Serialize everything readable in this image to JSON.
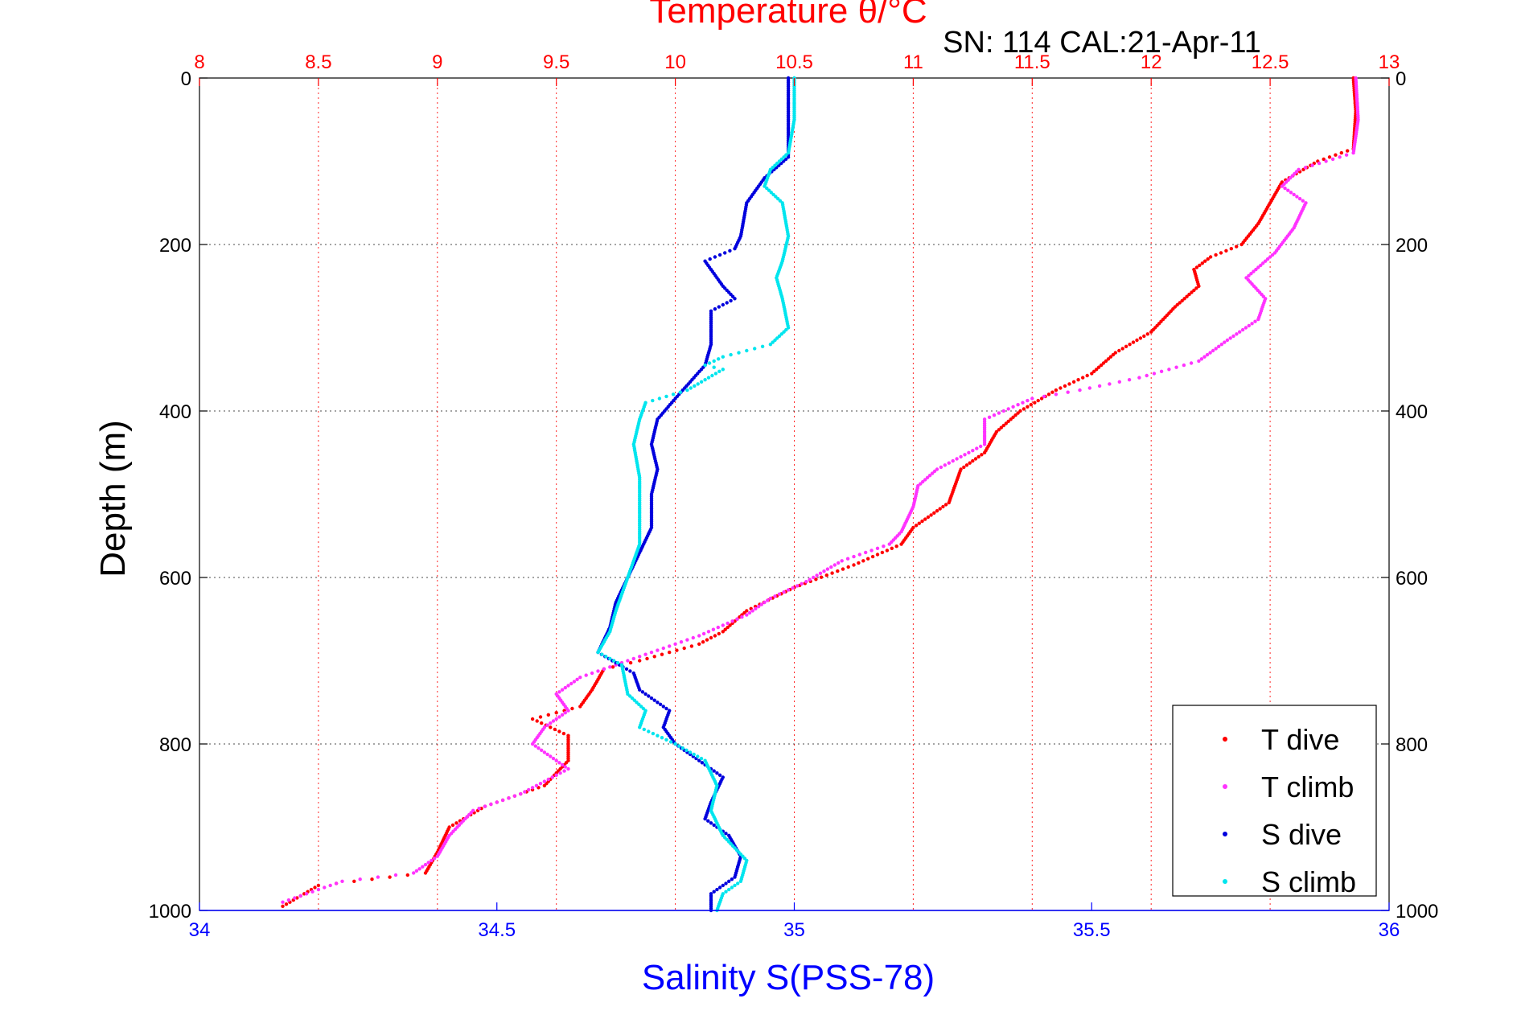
{
  "title_temperature": "Temperature θ/°C",
  "subtitle": "SN: 114  CAL:21-Apr-11",
  "y_label": "Depth (m)",
  "x_label": "Salinity S(PSS-78)",
  "colors": {
    "temp_axis": "#ff0000",
    "sal_axis": "#0000ff",
    "t_dive": "#ff0000",
    "t_climb": "#ff33ff",
    "s_dive": "#0000dd",
    "s_climb": "#00e5ee"
  },
  "chart_data": {
    "type": "scatter",
    "title": "Temperature θ/°C",
    "subtitle": "SN: 114  CAL:21-Apr-11",
    "xlabel": "Salinity S(PSS-78)",
    "ylabel": "Depth (m)",
    "x_top_label": "Temperature θ/°C",
    "x_top_lim": [
      8,
      13
    ],
    "x_top_ticks": [
      "8",
      "8.5",
      "9",
      "9.5",
      "10",
      "10.5",
      "11",
      "11.5",
      "12",
      "12.5",
      "13"
    ],
    "x_top_tick_values": [
      8,
      8.5,
      9,
      9.5,
      10,
      10.5,
      11,
      11.5,
      12,
      12.5,
      13
    ],
    "x_bottom_lim": [
      34,
      36
    ],
    "x_bottom_ticks": [
      "34",
      "34.5",
      "35",
      "35.5",
      "36"
    ],
    "x_bottom_tick_values": [
      34,
      34.5,
      35,
      35.5,
      36
    ],
    "ylim": [
      0,
      1000
    ],
    "y_reversed": true,
    "y_ticks": [
      "0",
      "200",
      "400",
      "600",
      "800",
      "1000"
    ],
    "y_tick_values": [
      0,
      200,
      400,
      600,
      800,
      1000
    ],
    "grid": true,
    "legend_position": "bottom-right",
    "series": [
      {
        "name": "T dive",
        "axis": "temperature",
        "points": [
          [
            12.85,
            0
          ],
          [
            12.86,
            40
          ],
          [
            12.85,
            85
          ],
          [
            12.7,
            100
          ],
          [
            12.55,
            125
          ],
          [
            12.5,
            150
          ],
          [
            12.45,
            175
          ],
          [
            12.38,
            200
          ],
          [
            12.25,
            215
          ],
          [
            12.18,
            230
          ],
          [
            12.2,
            250
          ],
          [
            12.1,
            275
          ],
          [
            12.0,
            305
          ],
          [
            11.85,
            330
          ],
          [
            11.75,
            355
          ],
          [
            11.6,
            375
          ],
          [
            11.45,
            400
          ],
          [
            11.35,
            425
          ],
          [
            11.3,
            450
          ],
          [
            11.2,
            470
          ],
          [
            11.15,
            510
          ],
          [
            11.0,
            540
          ],
          [
            10.95,
            560
          ],
          [
            10.75,
            585
          ],
          [
            10.5,
            612
          ],
          [
            10.3,
            640
          ],
          [
            10.2,
            665
          ],
          [
            10.1,
            680
          ],
          [
            9.85,
            700
          ],
          [
            9.7,
            710
          ],
          [
            9.65,
            735
          ],
          [
            9.6,
            755
          ],
          [
            9.4,
            770
          ],
          [
            9.55,
            790
          ],
          [
            9.55,
            820
          ],
          [
            9.45,
            850
          ],
          [
            9.2,
            875
          ],
          [
            9.05,
            900
          ],
          [
            9.0,
            930
          ],
          [
            8.95,
            955
          ],
          [
            8.5,
            970
          ],
          [
            8.35,
            995
          ]
        ]
      },
      {
        "name": "T climb",
        "axis": "temperature",
        "points": [
          [
            12.86,
            0
          ],
          [
            12.87,
            50
          ],
          [
            12.85,
            90
          ],
          [
            12.62,
            110
          ],
          [
            12.55,
            130
          ],
          [
            12.65,
            150
          ],
          [
            12.6,
            180
          ],
          [
            12.52,
            210
          ],
          [
            12.4,
            240
          ],
          [
            12.48,
            265
          ],
          [
            12.45,
            290
          ],
          [
            12.32,
            315
          ],
          [
            12.2,
            340
          ],
          [
            11.95,
            360
          ],
          [
            11.7,
            375
          ],
          [
            11.5,
            385
          ],
          [
            11.3,
            410
          ],
          [
            11.3,
            440
          ],
          [
            11.1,
            470
          ],
          [
            11.02,
            490
          ],
          [
            11.0,
            515
          ],
          [
            10.95,
            545
          ],
          [
            10.9,
            560
          ],
          [
            10.7,
            580
          ],
          [
            10.55,
            605
          ],
          [
            10.4,
            625
          ],
          [
            10.3,
            645
          ],
          [
            10.1,
            670
          ],
          [
            9.8,
            700
          ],
          [
            9.6,
            720
          ],
          [
            9.5,
            740
          ],
          [
            9.55,
            760
          ],
          [
            9.45,
            780
          ],
          [
            9.4,
            800
          ],
          [
            9.55,
            830
          ],
          [
            9.35,
            860
          ],
          [
            9.15,
            880
          ],
          [
            9.05,
            910
          ],
          [
            9.0,
            935
          ],
          [
            8.9,
            955
          ],
          [
            8.6,
            965
          ],
          [
            8.35,
            990
          ]
        ]
      },
      {
        "name": "S dive",
        "axis": "salinity",
        "points": [
          [
            34.99,
            0
          ],
          [
            34.99,
            50
          ],
          [
            34.99,
            95
          ],
          [
            34.95,
            120
          ],
          [
            34.92,
            150
          ],
          [
            34.91,
            190
          ],
          [
            34.9,
            205
          ],
          [
            34.85,
            220
          ],
          [
            34.88,
            250
          ],
          [
            34.9,
            265
          ],
          [
            34.86,
            280
          ],
          [
            34.86,
            320
          ],
          [
            34.85,
            345
          ],
          [
            34.8,
            385
          ],
          [
            34.77,
            410
          ],
          [
            34.76,
            440
          ],
          [
            34.77,
            470
          ],
          [
            34.76,
            500
          ],
          [
            34.76,
            540
          ],
          [
            34.74,
            570
          ],
          [
            34.72,
            600
          ],
          [
            34.7,
            630
          ],
          [
            34.69,
            660
          ],
          [
            34.67,
            690
          ],
          [
            34.73,
            715
          ],
          [
            34.74,
            735
          ],
          [
            34.79,
            760
          ],
          [
            34.78,
            780
          ],
          [
            34.8,
            800
          ],
          [
            34.84,
            820
          ],
          [
            34.88,
            840
          ],
          [
            34.86,
            870
          ],
          [
            34.85,
            890
          ],
          [
            34.89,
            910
          ],
          [
            34.91,
            935
          ],
          [
            34.9,
            960
          ],
          [
            34.86,
            980
          ],
          [
            34.86,
            1000
          ]
        ]
      },
      {
        "name": "S climb",
        "axis": "salinity",
        "points": [
          [
            35.0,
            0
          ],
          [
            35.0,
            50
          ],
          [
            34.99,
            90
          ],
          [
            34.96,
            110
          ],
          [
            34.95,
            130
          ],
          [
            34.98,
            150
          ],
          [
            34.99,
            190
          ],
          [
            34.98,
            220
          ],
          [
            34.97,
            240
          ],
          [
            34.98,
            265
          ],
          [
            34.99,
            300
          ],
          [
            34.96,
            320
          ],
          [
            34.88,
            335
          ],
          [
            34.85,
            345
          ],
          [
            34.88,
            350
          ],
          [
            34.82,
            375
          ],
          [
            34.75,
            390
          ],
          [
            34.74,
            410
          ],
          [
            34.73,
            440
          ],
          [
            34.74,
            480
          ],
          [
            34.74,
            530
          ],
          [
            34.74,
            560
          ],
          [
            34.72,
            600
          ],
          [
            34.7,
            640
          ],
          [
            34.69,
            665
          ],
          [
            34.67,
            690
          ],
          [
            34.71,
            705
          ],
          [
            34.72,
            740
          ],
          [
            34.75,
            760
          ],
          [
            34.74,
            780
          ],
          [
            34.8,
            800
          ],
          [
            34.85,
            820
          ],
          [
            34.87,
            850
          ],
          [
            34.86,
            880
          ],
          [
            34.88,
            910
          ],
          [
            34.92,
            940
          ],
          [
            34.91,
            965
          ],
          [
            34.88,
            980
          ],
          [
            34.87,
            1000
          ]
        ]
      }
    ]
  }
}
